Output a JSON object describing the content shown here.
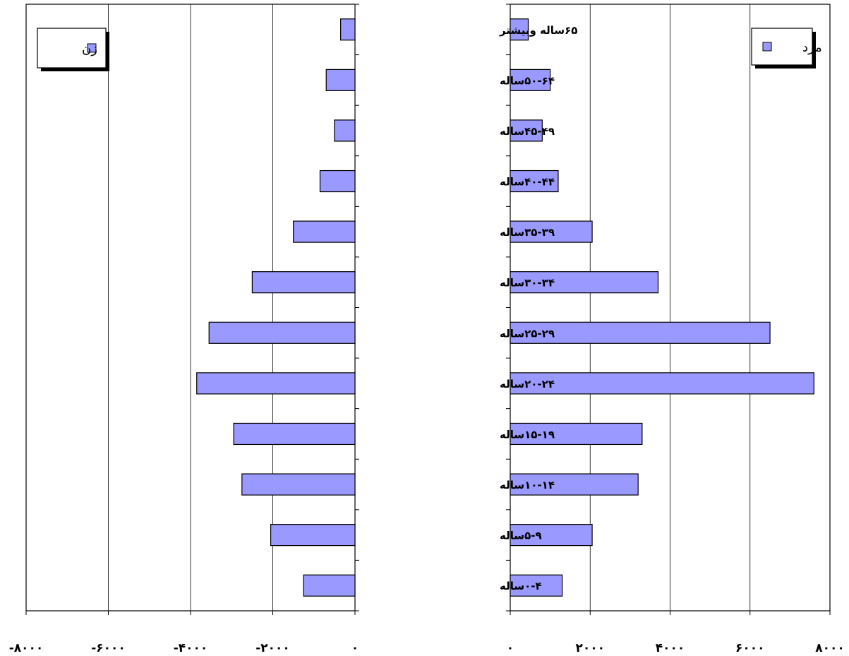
{
  "chart_data": [
    {
      "type": "bar",
      "orientation": "horizontal",
      "series": [
        {
          "name": "زن",
          "values": [
            -1250,
            -2050,
            -2750,
            -2950,
            -3850,
            -3550,
            -2500,
            -1500,
            -850,
            -500,
            -700,
            -350
          ]
        }
      ],
      "xlim": [
        -8000,
        0
      ],
      "x_ticks": [
        "-۸۰۰۰",
        "-۶۰۰۰",
        "-۴۰۰۰",
        "-۲۰۰۰",
        "۰"
      ],
      "grid": true,
      "legend": {
        "position": "top-left",
        "label": "زن"
      },
      "bar_color": "#9999ff"
    },
    {
      "type": "bar",
      "orientation": "horizontal",
      "categories": [
        "۰-۴ساله",
        "۵-۹ساله",
        "۱۰-۱۴ساله",
        "۱۵-۱۹ساله",
        "۲۰-۲۴ساله",
        "۲۵-۲۹ساله",
        "۳۰-۳۴ساله",
        "۳۵-۳۹ساله",
        "۴۰-۴۴ساله",
        "۴۵-۴۹ساله",
        "۵۰-۶۴ساله",
        "۶۵ساله وبیشتر"
      ],
      "series": [
        {
          "name": "مرد",
          "values": [
            1300,
            2050,
            3200,
            3300,
            7600,
            6500,
            3700,
            2050,
            1200,
            800,
            1000,
            450
          ]
        }
      ],
      "xlim": [
        0,
        8000
      ],
      "x_ticks": [
        "۰",
        "۲۰۰۰",
        "۴۰۰۰",
        "۶۰۰۰",
        "۸۰۰۰"
      ],
      "grid": true,
      "legend": {
        "position": "top-right",
        "label": "مرد"
      },
      "bar_color": "#9999ff"
    }
  ]
}
